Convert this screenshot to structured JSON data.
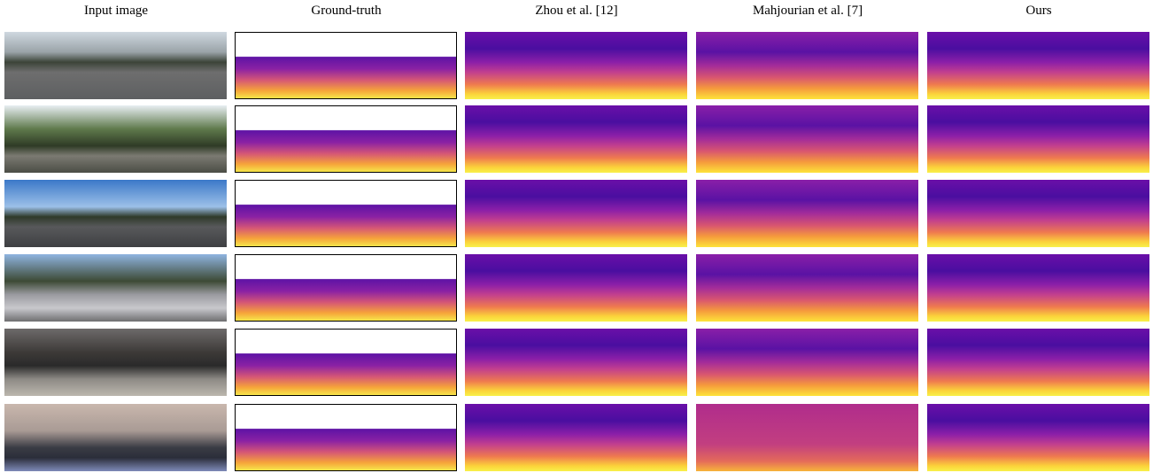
{
  "columns": [
    "Input image",
    "Ground-truth",
    "Zhou et al. [12]",
    "Mahjourian et al. [7]",
    "Ours"
  ]
}
